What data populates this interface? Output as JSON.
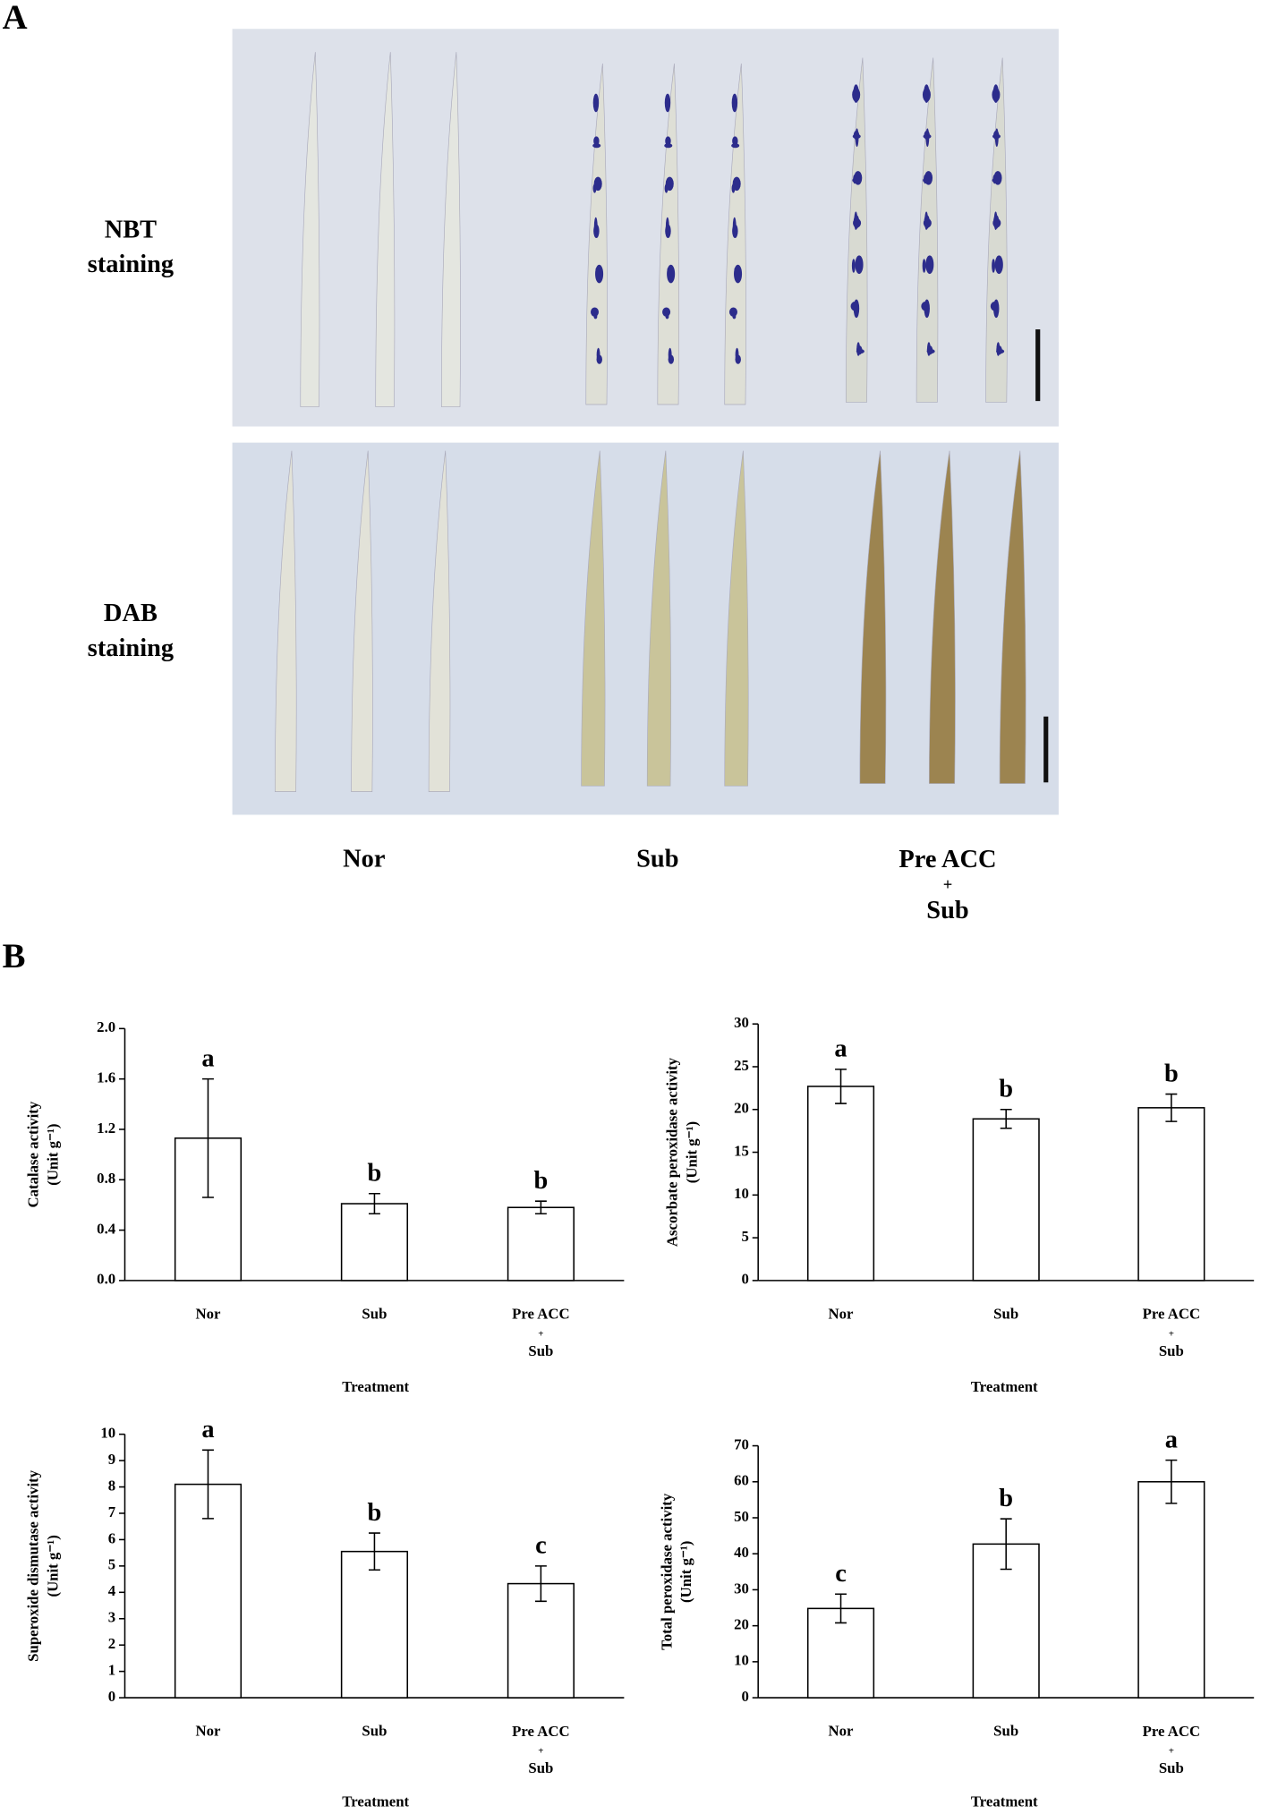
{
  "panel_a": {
    "label": "A",
    "rows": [
      "NBT\nstaining",
      "DAB\nstaining"
    ],
    "treatments": [
      "Nor",
      "Sub",
      "Pre ACC\n+\nSub"
    ]
  },
  "panel_b": {
    "label": "B"
  },
  "chart_data": [
    {
      "type": "bar",
      "ylabel": "Catalase activity",
      "yunit": "(Unit g⁻¹)",
      "xlabel": "Treatment",
      "categories": [
        "Nor",
        "Sub",
        "Pre ACC\n+\nSub"
      ],
      "values": [
        1.13,
        0.61,
        0.58
      ],
      "errors": [
        0.47,
        0.08,
        0.05
      ],
      "letters": [
        "a",
        "b",
        "b"
      ],
      "color": "#ffffff",
      "ylim": [
        0,
        2.0
      ],
      "yticks": [
        {
          "value": 0,
          "label": "0.0"
        },
        {
          "value": 0.4,
          "label": "0.4"
        },
        {
          "value": 0.8,
          "label": "0.8"
        },
        {
          "value": 1.2,
          "label": "1.2"
        },
        {
          "value": 1.6,
          "label": "1.6"
        },
        {
          "value": 2.0,
          "label": "2.0"
        }
      ]
    },
    {
      "type": "bar",
      "ylabel": "Ascorbate peroxidase activity",
      "yunit": "(Unit g⁻¹)",
      "xlabel": "Treatment",
      "categories": [
        "Nor",
        "Sub",
        "Pre ACC\n+\nSub"
      ],
      "values": [
        22.7,
        18.9,
        20.2
      ],
      "errors": [
        2.0,
        1.1,
        1.6
      ],
      "letters": [
        "a",
        "b",
        "b"
      ],
      "color": "#ffffff",
      "ylim": [
        0,
        30
      ],
      "yticks": [
        0,
        5,
        10,
        15,
        20,
        25,
        30
      ]
    },
    {
      "type": "bar",
      "ylabel": "Superoxide dismutase activity",
      "yunit": "(Unit g⁻¹)",
      "xlabel": "Treatment",
      "categories": [
        "Nor",
        "Sub",
        "Pre ACC\n+\nSub"
      ],
      "values": [
        8.1,
        5.55,
        4.33
      ],
      "errors": [
        1.3,
        0.7,
        0.67
      ],
      "letters": [
        "a",
        "b",
        "c"
      ],
      "color": "#ffffff",
      "ylim": [
        0,
        10
      ],
      "yticks": [
        0,
        1,
        2,
        3,
        4,
        5,
        6,
        7,
        8,
        9,
        10
      ]
    },
    {
      "type": "bar",
      "ylabel": "Total peroxidase activity",
      "yunit": "(Unit g⁻¹)",
      "xlabel": "Treatment",
      "categories": [
        "Nor",
        "Sub",
        "Pre ACC\n+\nSub"
      ],
      "values": [
        24.8,
        42.7,
        60.0
      ],
      "errors": [
        4.0,
        7.0,
        6.0
      ],
      "letters": [
        "c",
        "b",
        "a"
      ],
      "color": "#ffffff",
      "ylim": [
        0,
        70
      ],
      "yticks": [
        0,
        10,
        20,
        30,
        40,
        50,
        60,
        70
      ]
    }
  ]
}
